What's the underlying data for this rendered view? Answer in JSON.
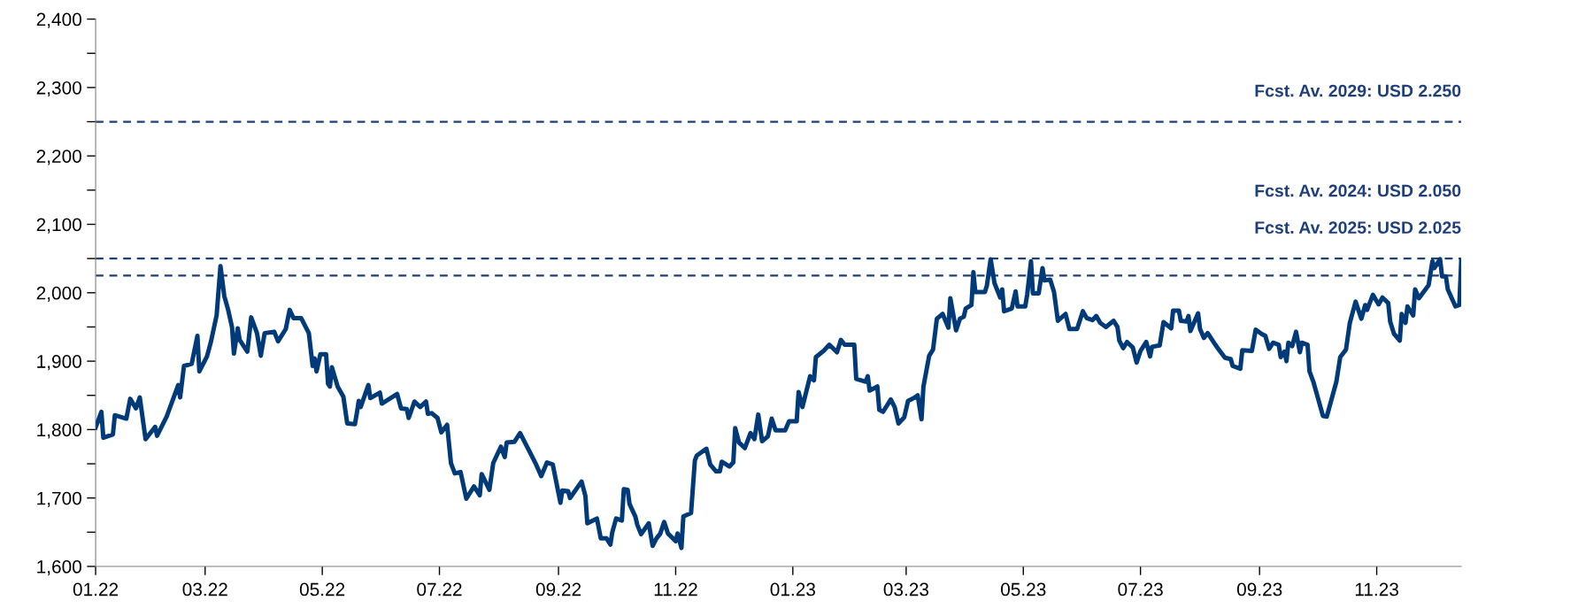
{
  "chart_data": {
    "type": "line",
    "x": [
      "2022-01-03",
      "2022-01-06",
      "2022-01-07",
      "2022-01-12",
      "2022-01-13",
      "2022-01-19",
      "2022-01-21",
      "2022-01-24",
      "2022-01-26",
      "2022-01-29",
      "2022-02-03",
      "2022-02-04",
      "2022-02-09",
      "2022-02-15",
      "2022-02-16",
      "2022-02-18",
      "2022-02-22",
      "2022-02-25",
      "2022-02-26",
      "2022-03-02",
      "2022-03-04",
      "2022-03-07",
      "2022-03-09",
      "2022-03-11",
      "2022-03-13",
      "2022-03-15",
      "2022-03-16",
      "2022-03-18",
      "2022-03-19",
      "2022-03-23",
      "2022-03-25",
      "2022-03-28",
      "2022-03-30",
      "2022-04-01",
      "2022-04-06",
      "2022-04-08",
      "2022-04-12",
      "2022-04-14",
      "2022-04-16",
      "2022-04-20",
      "2022-04-24",
      "2022-04-26",
      "2022-04-27",
      "2022-04-28",
      "2022-04-30",
      "2022-05-03",
      "2022-05-04",
      "2022-05-05",
      "2022-05-06",
      "2022-05-09",
      "2022-05-12",
      "2022-05-14",
      "2022-05-18",
      "2022-05-19",
      "2022-05-20",
      "2022-05-21",
      "2022-05-25",
      "2022-05-26",
      "2022-05-31",
      "2022-06-01",
      "2022-06-09",
      "2022-06-11",
      "2022-06-14",
      "2022-06-15",
      "2022-06-18",
      "2022-06-21",
      "2022-06-24",
      "2022-06-25",
      "2022-06-27",
      "2022-06-30",
      "2022-07-02",
      "2022-07-05",
      "2022-07-07",
      "2022-07-09",
      "2022-07-12",
      "2022-07-15",
      "2022-07-19",
      "2022-07-22",
      "2022-07-23",
      "2022-07-27",
      "2022-07-29",
      "2022-08-02",
      "2022-08-04",
      "2022-08-05",
      "2022-08-09",
      "2022-08-12",
      "2022-08-16",
      "2022-08-20",
      "2022-08-23",
      "2022-08-26",
      "2022-08-29",
      "2022-09-02",
      "2022-09-03",
      "2022-09-06",
      "2022-09-07",
      "2022-09-13",
      "2022-09-15",
      "2022-09-16",
      "2022-09-21",
      "2022-09-23",
      "2022-09-26",
      "2022-09-28",
      "2022-09-29",
      "2022-10-01",
      "2022-10-04",
      "2022-10-05",
      "2022-10-07",
      "2022-10-08",
      "2022-10-11",
      "2022-10-12",
      "2022-10-14",
      "2022-10-18",
      "2022-10-20",
      "2022-10-22",
      "2022-10-24",
      "2022-10-26",
      "2022-10-28",
      "2022-11-01",
      "2022-11-02",
      "2022-11-04",
      "2022-11-05",
      "2022-11-09",
      "2022-11-11",
      "2022-11-12",
      "2022-11-17",
      "2022-11-19",
      "2022-11-22",
      "2022-11-24",
      "2022-11-25",
      "2022-11-29",
      "2022-12-01",
      "2022-12-02",
      "2022-12-04",
      "2022-12-07",
      "2022-12-10",
      "2022-12-12",
      "2022-12-14",
      "2022-12-16",
      "2022-12-19",
      "2022-12-21",
      "2022-12-23",
      "2022-12-28",
      "2022-12-30",
      "2023-01-03",
      "2023-01-04",
      "2023-01-06",
      "2023-01-10",
      "2023-01-12",
      "2023-01-13",
      "2023-01-17",
      "2023-01-20",
      "2023-01-24",
      "2023-01-26",
      "2023-01-28",
      "2023-02-02",
      "2023-02-03",
      "2023-02-08",
      "2023-02-09",
      "2023-02-10",
      "2023-02-14",
      "2023-02-15",
      "2023-02-17",
      "2023-02-21",
      "2023-02-23",
      "2023-02-25",
      "2023-02-28",
      "2023-03-02",
      "2023-03-05",
      "2023-03-07",
      "2023-03-09",
      "2023-03-10",
      "2023-03-13",
      "2023-03-15",
      "2023-03-17",
      "2023-03-20",
      "2023-03-23",
      "2023-03-24",
      "2023-03-27",
      "2023-03-29",
      "2023-03-31",
      "2023-04-01",
      "2023-04-04",
      "2023-04-05",
      "2023-04-06",
      "2023-04-11",
      "2023-04-12",
      "2023-04-14",
      "2023-04-16",
      "2023-04-19",
      "2023-04-20",
      "2023-04-21",
      "2023-04-25",
      "2023-04-27",
      "2023-04-28",
      "2023-05-02",
      "2023-05-03",
      "2023-05-05",
      "2023-05-06",
      "2023-05-09",
      "2023-05-11",
      "2023-05-12",
      "2023-05-15",
      "2023-05-17",
      "2023-05-19",
      "2023-05-23",
      "2023-05-25",
      "2023-05-29",
      "2023-06-01",
      "2023-06-03",
      "2023-06-06",
      "2023-06-08",
      "2023-06-10",
      "2023-06-13",
      "2023-06-17",
      "2023-06-19",
      "2023-06-20",
      "2023-06-22",
      "2023-06-24",
      "2023-06-27",
      "2023-06-29",
      "2023-07-01",
      "2023-07-04",
      "2023-07-06",
      "2023-07-07",
      "2023-07-11",
      "2023-07-13",
      "2023-07-17",
      "2023-07-18",
      "2023-07-21",
      "2023-07-22",
      "2023-07-25",
      "2023-07-26",
      "2023-07-27",
      "2023-07-31",
      "2023-08-01",
      "2023-08-03",
      "2023-08-05",
      "2023-08-09",
      "2023-08-10",
      "2023-08-14",
      "2023-08-17",
      "2023-08-18",
      "2023-08-22",
      "2023-08-23",
      "2023-08-28",
      "2023-08-30",
      "2023-09-02",
      "2023-09-04",
      "2023-09-06",
      "2023-09-08",
      "2023-09-11",
      "2023-09-12",
      "2023-09-14",
      "2023-09-15",
      "2023-09-16",
      "2023-09-18",
      "2023-09-20",
      "2023-09-22",
      "2023-09-23",
      "2023-09-26",
      "2023-09-27",
      "2023-09-29",
      "2023-10-04",
      "2023-10-06",
      "2023-10-11",
      "2023-10-13",
      "2023-10-16",
      "2023-10-18",
      "2023-10-21",
      "2023-10-24",
      "2023-10-26",
      "2023-10-27",
      "2023-10-30",
      "2023-11-02",
      "2023-11-04",
      "2023-11-07",
      "2023-11-08",
      "2023-11-10",
      "2023-11-13",
      "2023-11-14",
      "2023-11-16",
      "2023-11-17",
      "2023-11-20",
      "2023-11-21",
      "2023-11-23",
      "2023-11-28",
      "2023-11-30",
      "2023-12-01",
      "2023-12-04",
      "2023-12-05",
      "2023-12-07",
      "2023-12-08",
      "2023-12-12",
      "2023-12-14",
      "2023-12-15"
    ],
    "series": [
      {
        "color": "#003a78",
        "values": [
          1803,
          1826,
          1788,
          1793,
          1821,
          1816,
          1845,
          1831,
          1847,
          1786,
          1804,
          1791,
          1819,
          1865,
          1847,
          1893,
          1896,
          1937,
          1885,
          1907,
          1928,
          1967,
          2039,
          1995,
          1975,
          1950,
          1911,
          1948,
          1931,
          1914,
          1964,
          1941,
          1908,
          1941,
          1943,
          1929,
          1947,
          1975,
          1963,
          1963,
          1941,
          1893,
          1904,
          1885,
          1910,
          1910,
          1867,
          1863,
          1891,
          1863,
          1848,
          1809,
          1808,
          1824,
          1842,
          1833,
          1865,
          1846,
          1854,
          1838,
          1852,
          1831,
          1830,
          1817,
          1841,
          1833,
          1841,
          1823,
          1824,
          1817,
          1796,
          1807,
          1751,
          1736,
          1738,
          1699,
          1717,
          1704,
          1735,
          1712,
          1751,
          1775,
          1760,
          1781,
          1782,
          1795,
          1773,
          1751,
          1732,
          1752,
          1749,
          1693,
          1711,
          1710,
          1700,
          1724,
          1703,
          1663,
          1670,
          1641,
          1641,
          1632,
          1650,
          1670,
          1667,
          1713,
          1712,
          1691,
          1673,
          1661,
          1647,
          1663,
          1630,
          1641,
          1648,
          1665,
          1648,
          1637,
          1648,
          1627,
          1673,
          1678,
          1755,
          1762,
          1772,
          1749,
          1739,
          1739,
          1753,
          1746,
          1752,
          1802,
          1781,
          1773,
          1795,
          1786,
          1822,
          1783,
          1790,
          1816,
          1799,
          1799,
          1812,
          1812,
          1855,
          1833,
          1878,
          1872,
          1906,
          1915,
          1924,
          1913,
          1931,
          1924,
          1924,
          1874,
          1870,
          1878,
          1857,
          1863,
          1829,
          1826,
          1844,
          1833,
          1809,
          1818,
          1842,
          1846,
          1850,
          1815,
          1863,
          1908,
          1917,
          1962,
          1969,
          1949,
          1992,
          1945,
          1962,
          1965,
          1977,
          1982,
          2030,
          2001,
          2001,
          2010,
          2049,
          2014,
          1993,
          2005,
          1973,
          1977,
          2002,
          1980,
          1980,
          1997,
          2046,
          1999,
          1999,
          2036,
          2018,
          2019,
          2001,
          1959,
          1969,
          1947,
          1947,
          1973,
          1963,
          1960,
          1966,
          1956,
          1950,
          1959,
          1950,
          1930,
          1919,
          1928,
          1920,
          1898,
          1915,
          1928,
          1907,
          1921,
          1923,
          1957,
          1948,
          1974,
          1974,
          1959,
          1958,
          1966,
          1944,
          1970,
          1947,
          1934,
          1941,
          1924,
          1920,
          1905,
          1903,
          1893,
          1889,
          1916,
          1915,
          1946,
          1940,
          1937,
          1918,
          1927,
          1924,
          1906,
          1914,
          1900,
          1927,
          1922,
          1943,
          1913,
          1927,
          1924,
          1885,
          1870,
          1820,
          1819,
          1870,
          1906,
          1917,
          1956,
          1987,
          1962,
          1982,
          1975,
          1997,
          1983,
          1993,
          1985,
          1958,
          1940,
          1930,
          1969,
          1956,
          1980,
          1967,
          2005,
          1992,
          2011,
          2046,
          2036,
          2049,
          2024,
          2024,
          2005,
          1980,
          1982,
          2046
        ]
      }
    ],
    "xlim": [
      "2022-01-03",
      "2023-12-15"
    ],
    "xticks": [
      {
        "value": "2022-01-03",
        "label": "01.22"
      },
      {
        "value": "2022-03-01",
        "label": "03.22"
      },
      {
        "value": "2022-05-01",
        "label": "05.22"
      },
      {
        "value": "2022-07-01",
        "label": "07.22"
      },
      {
        "value": "2022-09-01",
        "label": "09.22"
      },
      {
        "value": "2022-11-01",
        "label": "11.22"
      },
      {
        "value": "2023-01-01",
        "label": "01.23"
      },
      {
        "value": "2023-03-01",
        "label": "03.23"
      },
      {
        "value": "2023-05-01",
        "label": "05.23"
      },
      {
        "value": "2023-07-01",
        "label": "07.23"
      },
      {
        "value": "2023-09-01",
        "label": "09.23"
      },
      {
        "value": "2023-11-01",
        "label": "11.23"
      }
    ],
    "ylim": [
      1600,
      2400
    ],
    "yticks": [
      {
        "value": 1600,
        "label": "1,600"
      },
      {
        "value": 1650,
        "label": null
      },
      {
        "value": 1700,
        "label": "1,700"
      },
      {
        "value": 1750,
        "label": null
      },
      {
        "value": 1800,
        "label": "1,800"
      },
      {
        "value": 1850,
        "label": null
      },
      {
        "value": 1900,
        "label": "1,900"
      },
      {
        "value": 1950,
        "label": null
      },
      {
        "value": 2000,
        "label": "2,000"
      },
      {
        "value": 2050,
        "label": null
      },
      {
        "value": 2100,
        "label": "2,100"
      },
      {
        "value": 2150,
        "label": null
      },
      {
        "value": 2200,
        "label": "2,200"
      },
      {
        "value": 2250,
        "label": null
      },
      {
        "value": 2300,
        "label": "2,300"
      },
      {
        "value": 2350,
        "label": null
      },
      {
        "value": 2400,
        "label": "2,400"
      }
    ],
    "ref_lines": [
      {
        "axis": "y",
        "value": 2250,
        "label": "Fcst. Av. 2029: USD 2.250",
        "color": "#1f3f7a",
        "line_style": "dashed"
      },
      {
        "axis": "y",
        "value": 2050,
        "label": "Fcst. Av. 2024: USD 2.050",
        "color": "#1f3f7a",
        "line_style": "dashed"
      },
      {
        "axis": "y",
        "value": 2025,
        "label": "Fcst. Av. 2025: USD 2.025",
        "color": "#1f3f7a",
        "line_style": "dashed"
      }
    ],
    "grid": false
  }
}
